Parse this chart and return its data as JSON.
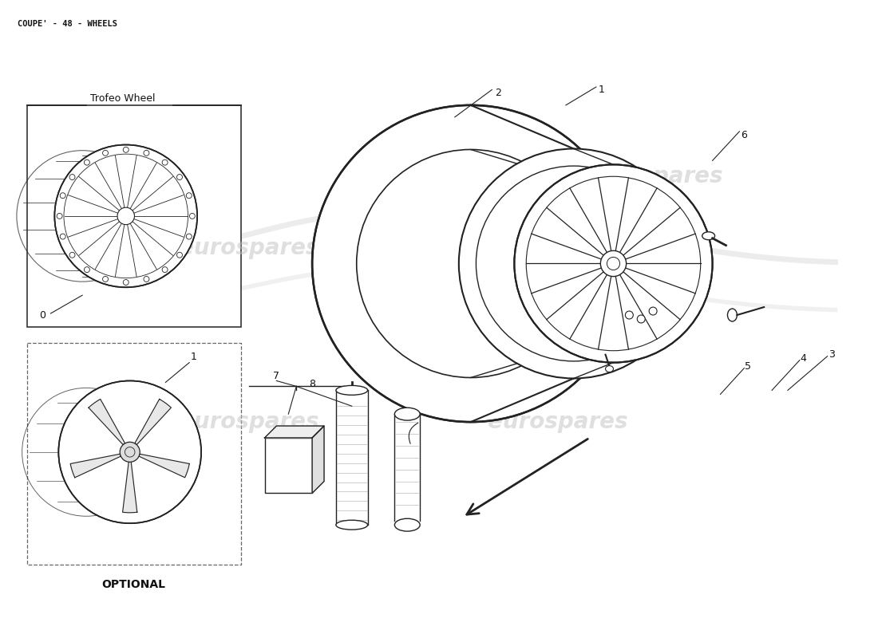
{
  "title": "COUPE' - 48 - WHEELS",
  "background_color": "#ffffff",
  "line_color": "#222222",
  "watermark_color": "#c0c0c0",
  "watermark_text": "eurospares",
  "top_box_label": "Trofeo Wheel",
  "top_box_part_num": "0",
  "bottom_box_label": "OPTIONAL",
  "bottom_box_part_num": "1"
}
